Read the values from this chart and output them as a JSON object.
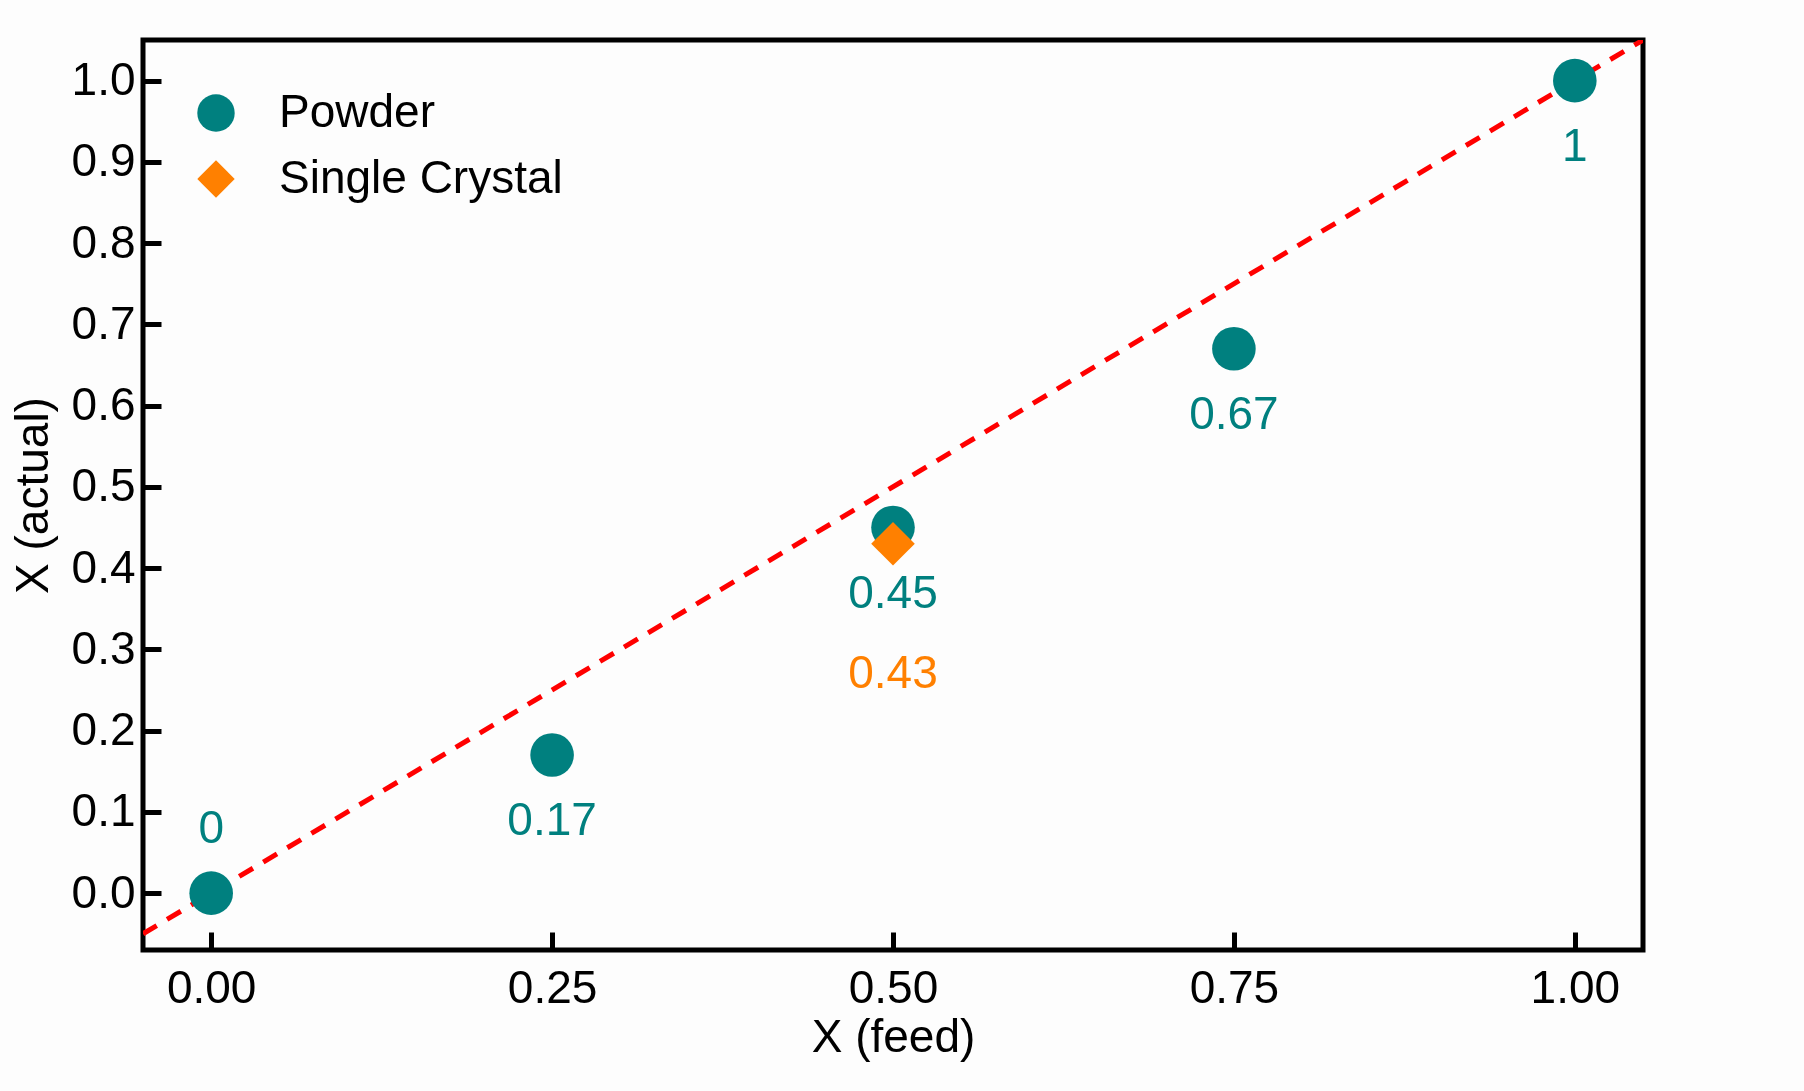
{
  "chart_data": {
    "type": "scatter",
    "xlabel": "X (feed)",
    "ylabel": "X (actual)",
    "xlim": [
      -0.05,
      1.05
    ],
    "ylim": [
      -0.07,
      1.05
    ],
    "xticks": [
      {
        "value": 0,
        "label": "0.00"
      },
      {
        "value": 0.25,
        "label": "0.25"
      },
      {
        "value": 0.5,
        "label": "0.50"
      },
      {
        "value": 0.75,
        "label": "0.75"
      },
      {
        "value": 1,
        "label": "1.00"
      }
    ],
    "yticks": [
      {
        "value": 0,
        "label": "0.0"
      },
      {
        "value": 0.1,
        "label": "0.1"
      },
      {
        "value": 0.2,
        "label": "0.2"
      },
      {
        "value": 0.3,
        "label": "0.3"
      },
      {
        "value": 0.4,
        "label": "0.4"
      },
      {
        "value": 0.5,
        "label": "0.5"
      },
      {
        "value": 0.6,
        "label": "0.6"
      },
      {
        "value": 0.7,
        "label": "0.7"
      },
      {
        "value": 0.8,
        "label": "0.8"
      },
      {
        "value": 0.9,
        "label": "0.9"
      },
      {
        "value": 1,
        "label": "1.0"
      }
    ],
    "legend": "top left",
    "series": [
      {
        "name": "Powder",
        "marker": "circle",
        "color": "#00807f",
        "x": [
          0,
          0.25,
          0.5,
          0.75,
          1
        ],
        "values": [
          0,
          0.17,
          0.45,
          0.67,
          1
        ],
        "value_labels": [
          "0",
          "0.17",
          "0.45",
          "0.67",
          "1"
        ]
      },
      {
        "name": "Single Crystal",
        "marker": "diamond",
        "color": "#ff8000",
        "x": [
          0.5
        ],
        "values": [
          0.43
        ],
        "value_labels": [
          "0.43"
        ]
      },
      {
        "type": "line",
        "color": "#ff0000",
        "line_style": "dashed",
        "marker": "none",
        "x": [
          -0.05,
          1.05
        ],
        "values": [
          -0.05,
          1.05
        ]
      }
    ]
  }
}
